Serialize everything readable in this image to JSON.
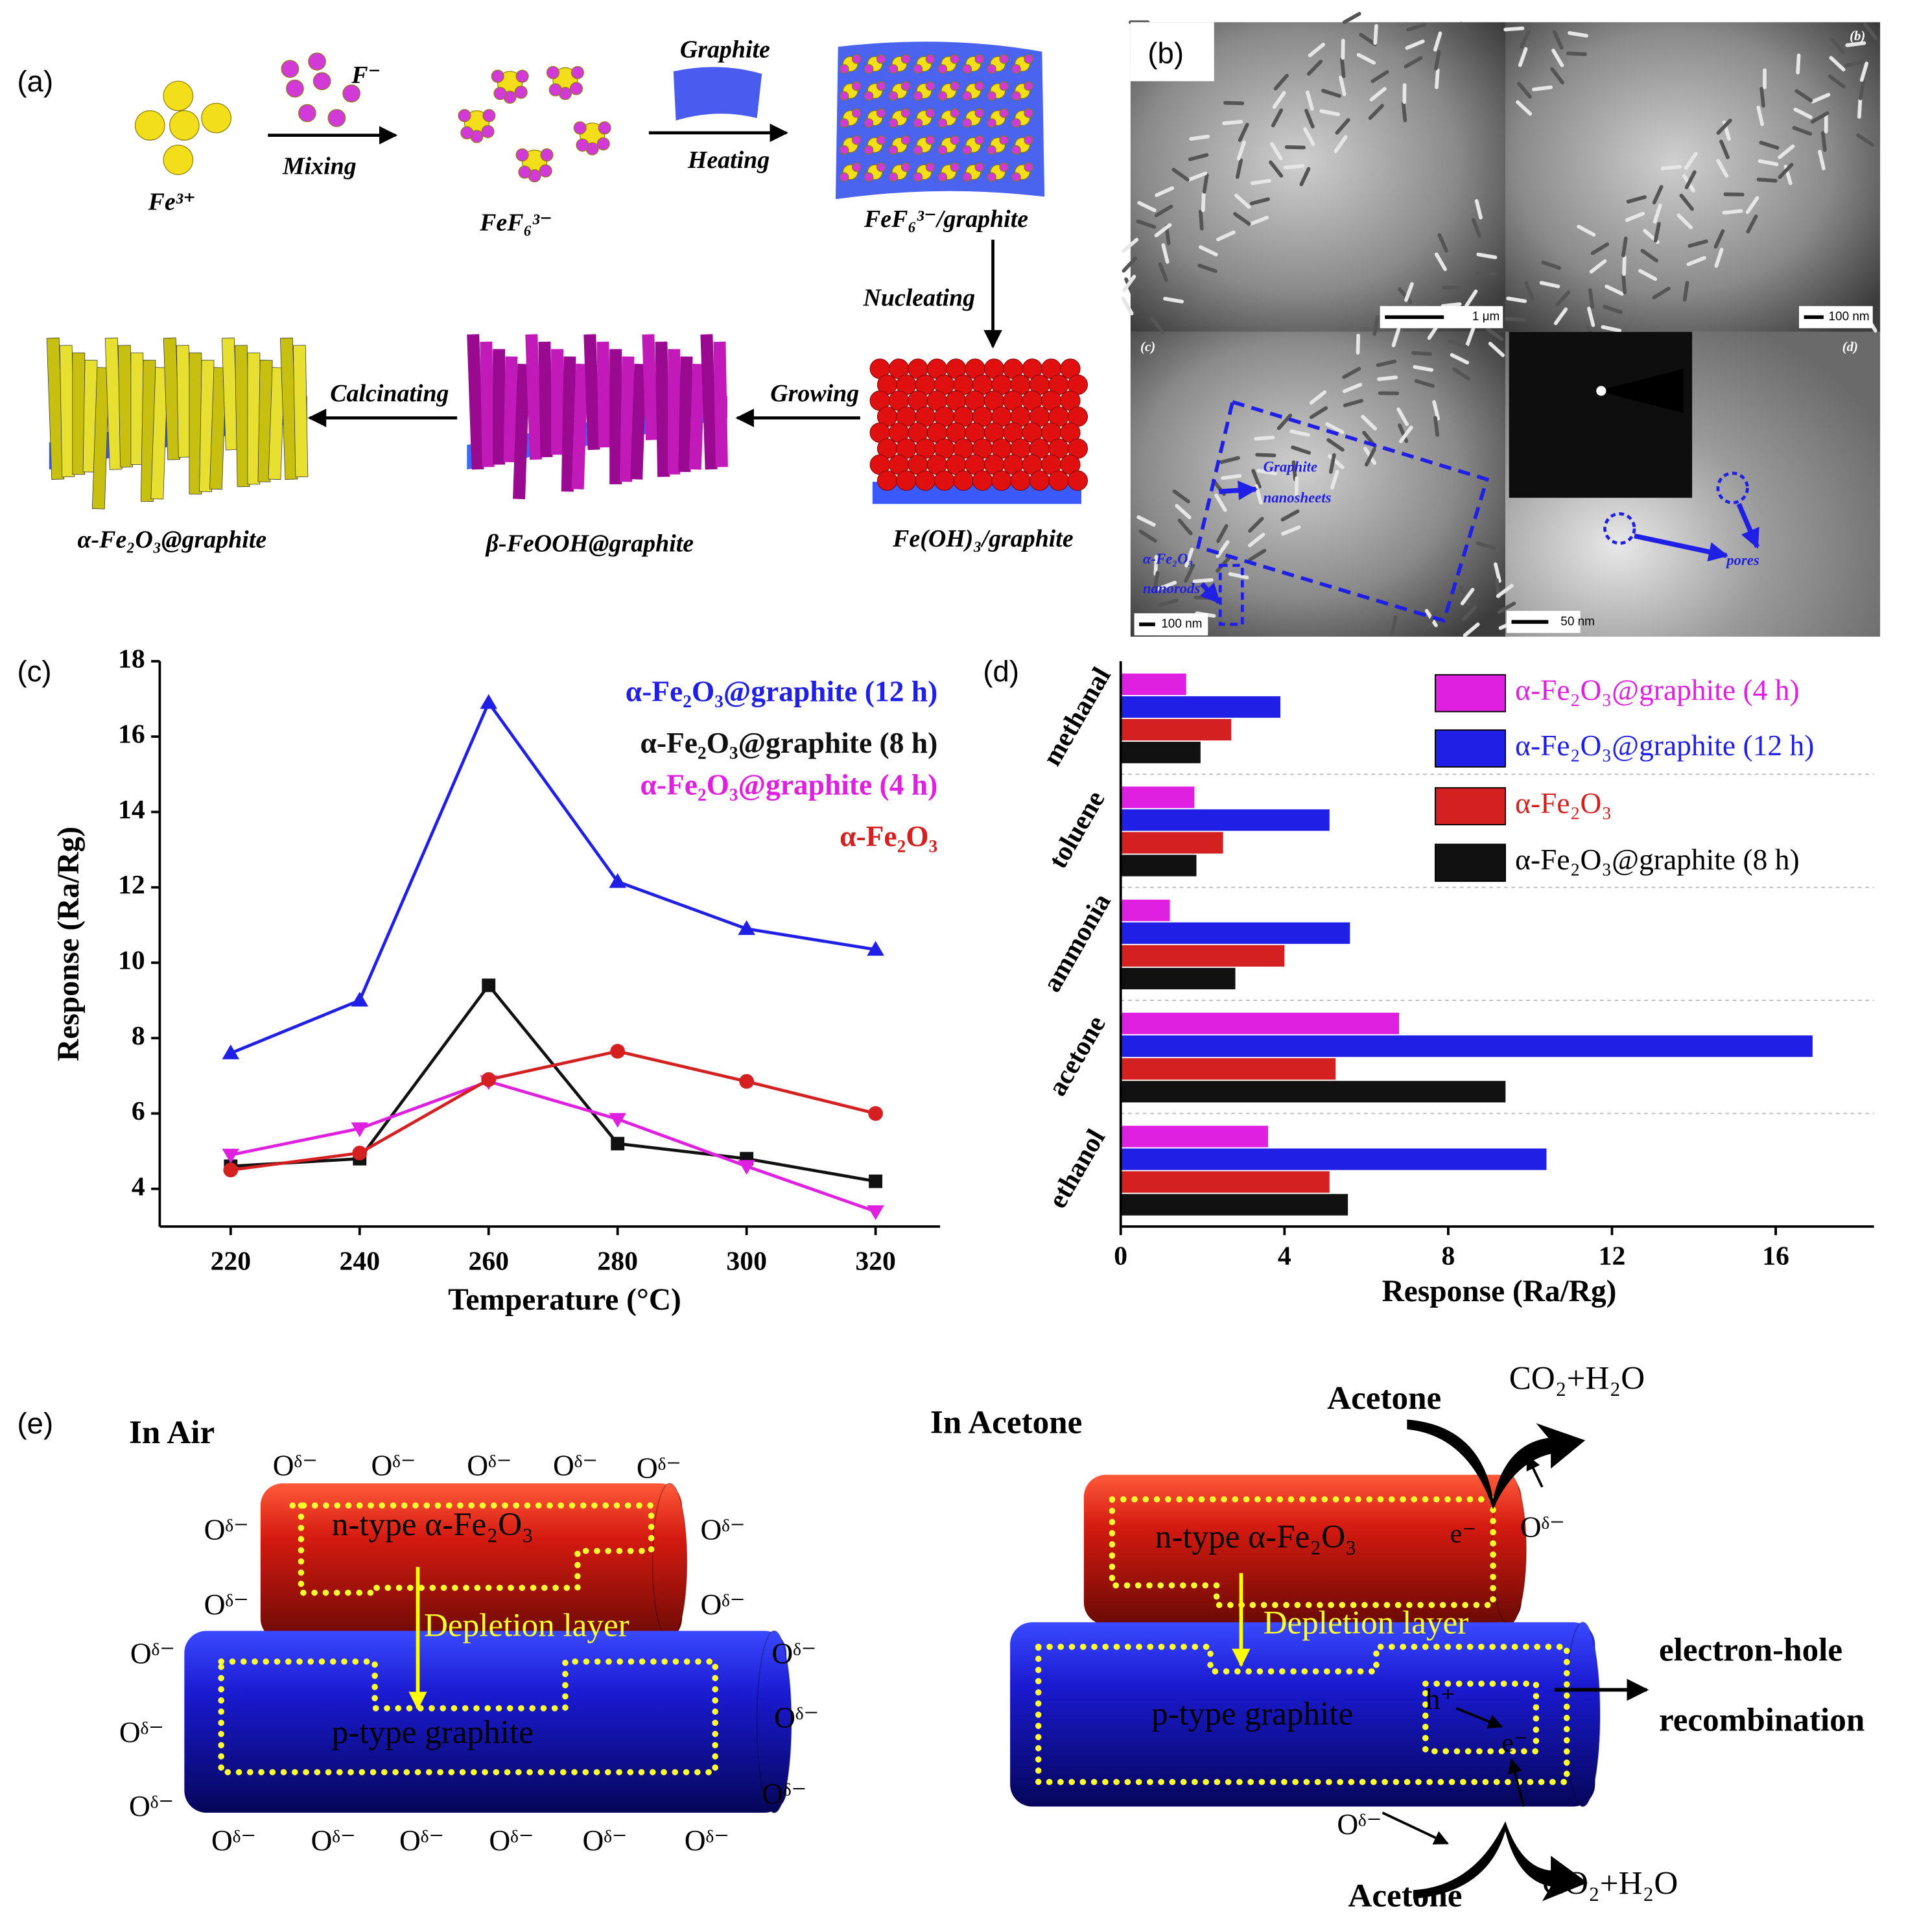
{
  "panel_labels": [
    "(a)",
    "(b)",
    "(c)",
    "(d)",
    "(e)"
  ],
  "scheme_a": {
    "labels": [
      "Fe³⁺",
      "F⁻",
      "Mixing",
      "FeF₆³⁻",
      "Graphite",
      "Heating",
      "FeF₆³⁻/graphite",
      "Nucleating",
      "Fe(OH)₃/graphite",
      "Growing",
      "β-FeOOH@graphite",
      "Calcinating",
      "α-Fe₂O₃@graphite"
    ]
  },
  "micrographs": {
    "corner_labels": [
      "(b)",
      "(c)",
      "(d)"
    ],
    "scale_bars": [
      "1 μm",
      "100 nm",
      "100 nm",
      "50 nm"
    ],
    "annotations": [
      "Graphite",
      "nanosheets",
      "α-Fe₂O₃",
      "nanorods",
      "pores"
    ]
  },
  "chart_data": [
    {
      "type": "line",
      "x_label": "Temperature (°C)",
      "y_label": "Response (Ra/Rg)",
      "x": [
        220,
        240,
        260,
        280,
        300,
        320
      ],
      "xlim": [
        209,
        330
      ],
      "xticks": [
        220,
        240,
        260,
        280,
        300,
        320
      ],
      "ylim": [
        3,
        18
      ],
      "yticks": [
        4,
        6,
        8,
        10,
        12,
        14,
        16,
        18
      ],
      "legend": "upper right",
      "series": [
        {
          "name": "α-Fe₂O₃@graphite (12 h)",
          "color": "#1f1fe6",
          "marker": "triangle",
          "values": [
            7.6,
            9.0,
            16.9,
            12.15,
            10.9,
            10.35
          ]
        },
        {
          "name": "α-Fe₂O₃@graphite (8 h)",
          "color": "#111111",
          "marker": "square",
          "values": [
            4.6,
            4.8,
            9.4,
            5.2,
            4.8,
            4.2
          ]
        },
        {
          "name": "α-Fe₂O₃@graphite (4 h)",
          "color": "#e020e0",
          "marker": "triangle-down",
          "values": [
            4.9,
            5.6,
            6.85,
            5.85,
            4.6,
            3.4
          ]
        },
        {
          "name": "α-Fe₂O₃",
          "color": "#d42020",
          "marker": "circle",
          "values": [
            4.5,
            4.95,
            6.9,
            7.65,
            6.85,
            6.0
          ]
        }
      ]
    },
    {
      "type": "bar",
      "orientation": "horizontal",
      "x_label": "Response (Ra/Rg)",
      "categories": [
        "methanal",
        "toluene",
        "ammonia",
        "acetone",
        "ethanol"
      ],
      "xlim": [
        0,
        18.4
      ],
      "xticks": [
        0,
        4,
        8,
        12,
        16
      ],
      "legend": "upper right",
      "series": [
        {
          "name": "α-Fe₂O₃@graphite (4 h)",
          "color": "#e020e0",
          "values": [
            1.6,
            1.8,
            1.2,
            6.8,
            3.6
          ]
        },
        {
          "name": "α-Fe₂O₃@graphite (12 h)",
          "color": "#1f1fe6",
          "values": [
            3.9,
            5.1,
            5.6,
            16.9,
            10.4
          ]
        },
        {
          "name": "α-Fe₂O₃",
          "color": "#d42020",
          "values": [
            2.7,
            2.5,
            4.0,
            5.25,
            5.1
          ]
        },
        {
          "name": "α-Fe₂O₃@graphite (8 h)",
          "color": "#111111",
          "values": [
            1.95,
            1.85,
            2.8,
            9.4,
            5.55
          ]
        }
      ]
    }
  ],
  "scheme_e": {
    "left_title": "In Air",
    "right_title": "In Acetone",
    "n_type": "n-type α-Fe₂O₃",
    "depletion": "Depletion layer",
    "p_type": "p-type graphite",
    "oxygen": "Oᵟ⁻",
    "acetone": "Acetone",
    "products": "CO₂+H₂O",
    "electron": "e⁻",
    "hole": "h⁺",
    "recombination": [
      "electron-hole",
      "recombination"
    ]
  }
}
